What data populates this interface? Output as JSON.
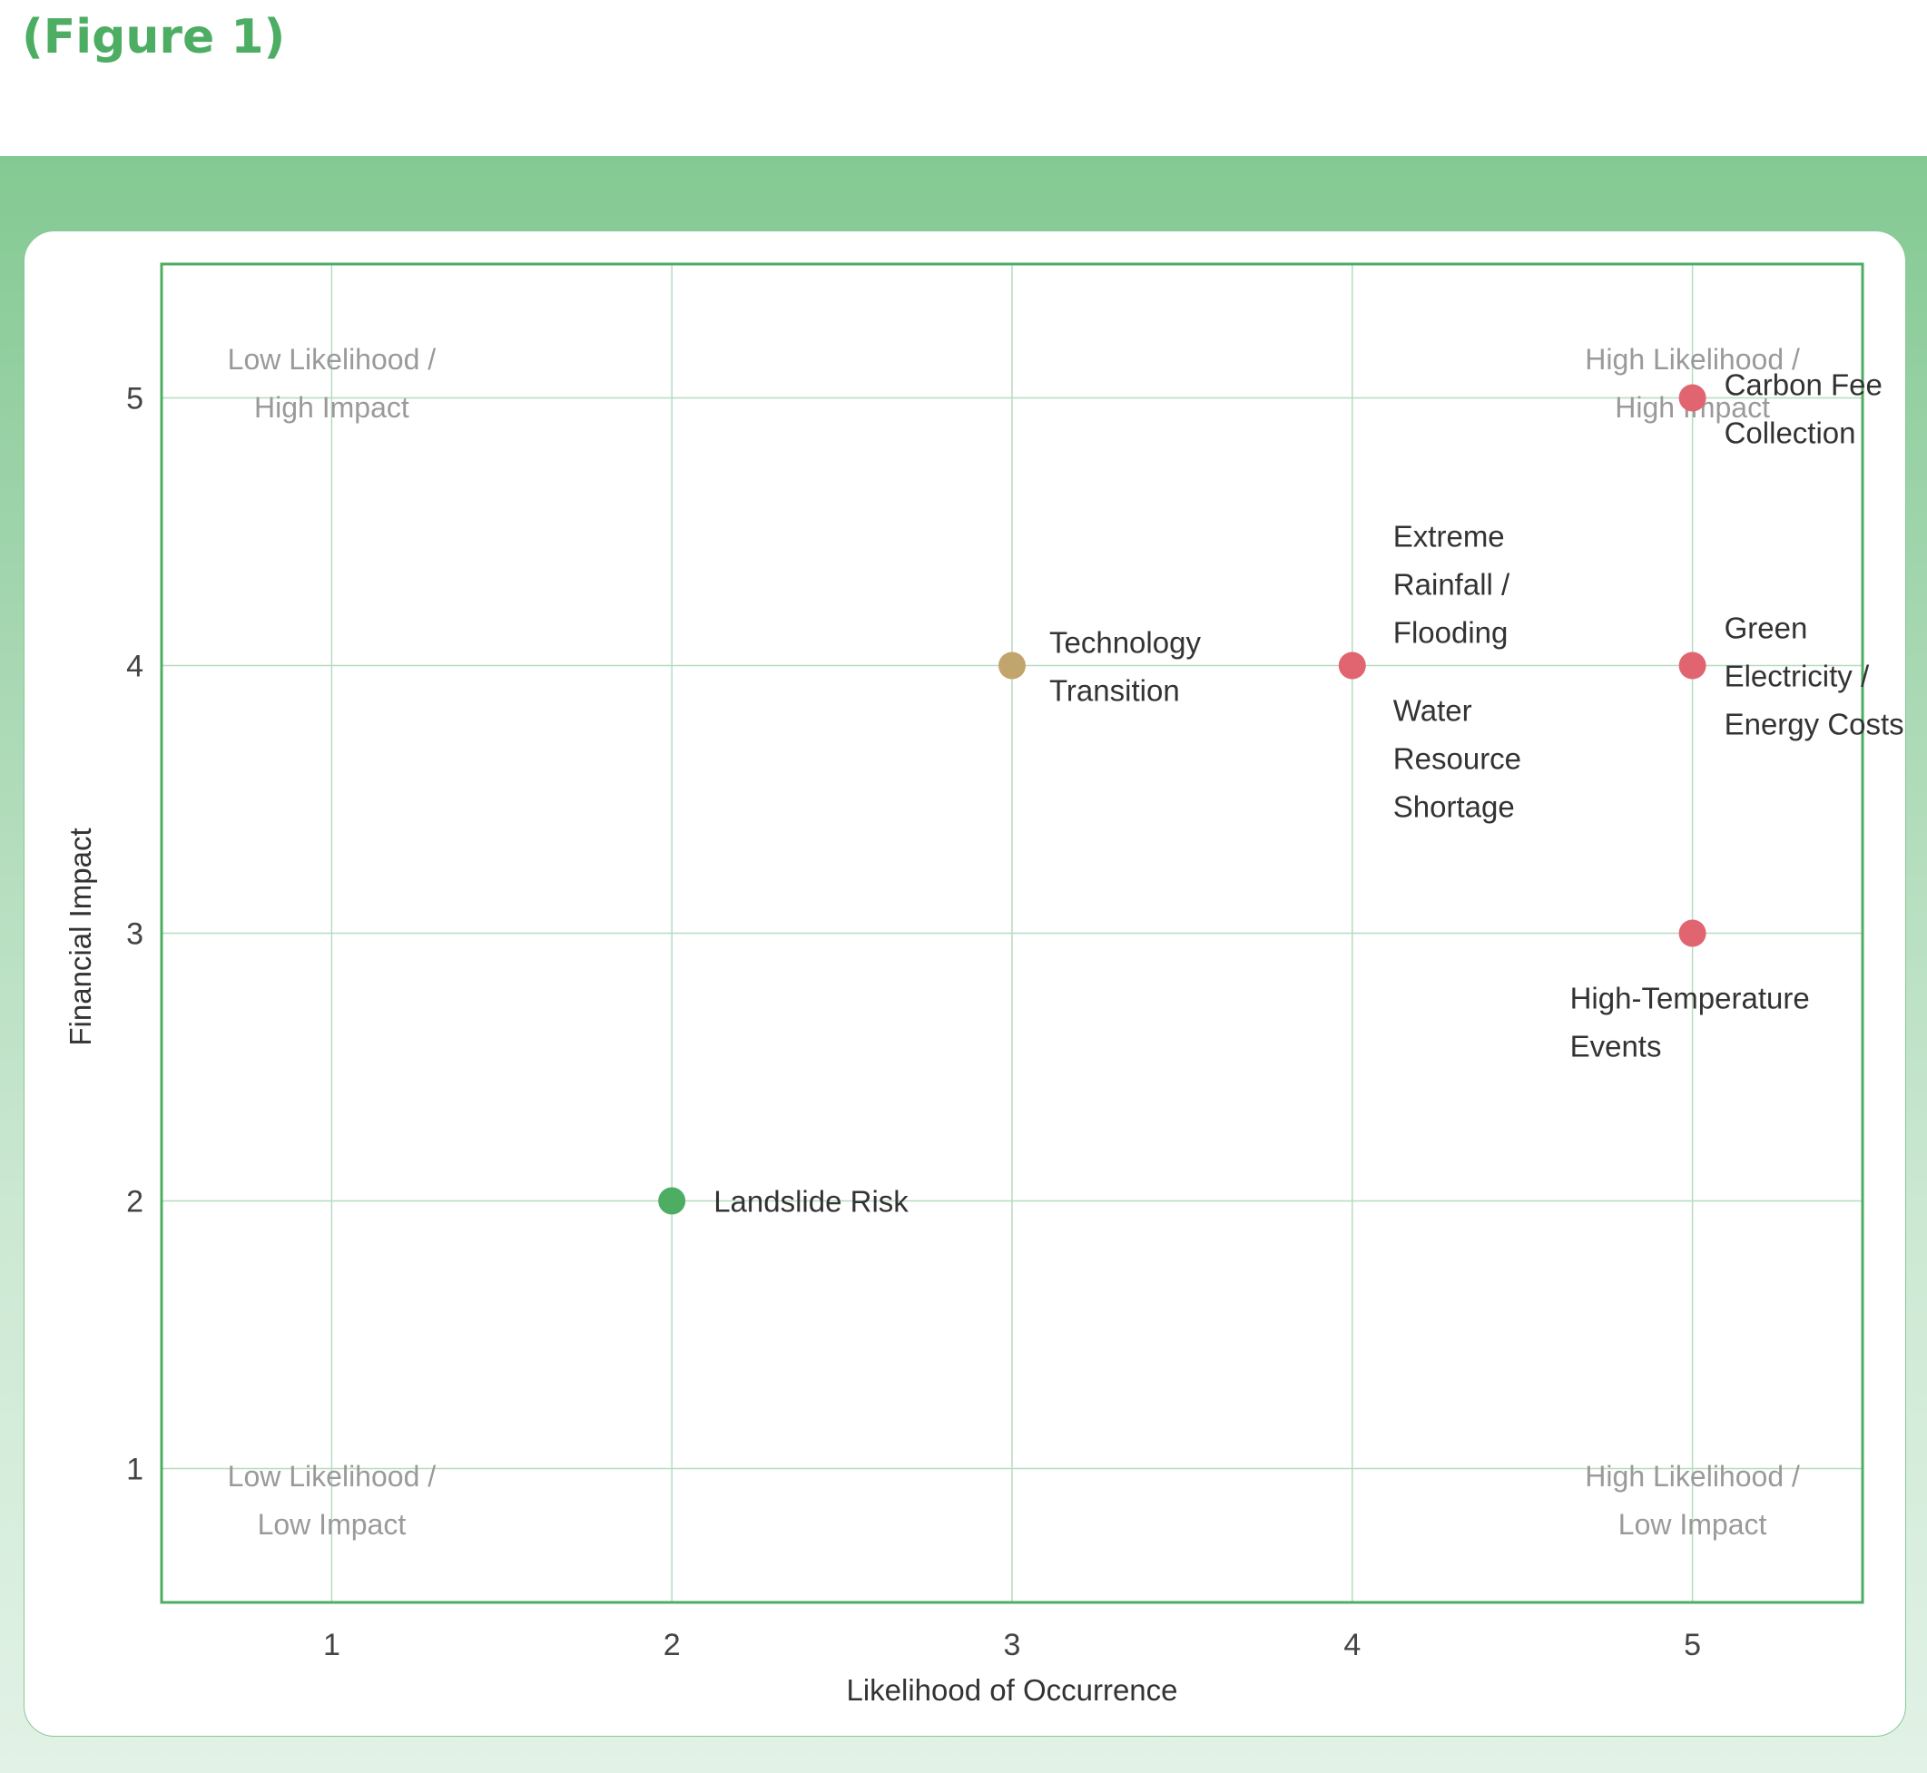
{
  "figure_label": "(Figure 1)",
  "colors": {
    "title": "#4cad63",
    "frame": "#4cad63",
    "grid": "#b5dcbf",
    "red": "#e06571",
    "gold": "#c2a46d",
    "green": "#4cad63"
  },
  "chart_data": {
    "type": "scatter",
    "xlabel": "Likelihood of Occurrence",
    "ylabel": "Financial Impact",
    "xlim": [
      0.5,
      5.5
    ],
    "ylim": [
      0.5,
      5.5
    ],
    "xticks": [
      "1",
      "2",
      "3",
      "4",
      "5"
    ],
    "yticks": [
      "1",
      "2",
      "3",
      "4",
      "5"
    ],
    "grid": true,
    "quadrant_labels": [
      {
        "position": "top-left",
        "lines": [
          "Low Likelihood /",
          "High Impact"
        ]
      },
      {
        "position": "top-right",
        "lines": [
          "High Likelihood /",
          "High Impact"
        ]
      },
      {
        "position": "bottom-left",
        "lines": [
          "Low Likelihood /",
          "Low Impact"
        ]
      },
      {
        "position": "bottom-right",
        "lines": [
          "High Likelihood /",
          "Low Impact"
        ]
      }
    ],
    "points": [
      {
        "x": 5,
        "y": 5,
        "color": "red"
      },
      {
        "x": 4,
        "y": 4,
        "color": "red"
      },
      {
        "x": 5,
        "y": 4,
        "color": "red"
      },
      {
        "x": 3,
        "y": 4,
        "color": "gold"
      },
      {
        "x": 5,
        "y": 3,
        "color": "red"
      },
      {
        "x": 2,
        "y": 2,
        "color": "green"
      }
    ],
    "annotations": [
      {
        "x": 5,
        "y": 5,
        "lines": [
          "Carbon Fee",
          "Collection"
        ]
      },
      {
        "x": 4,
        "y": 4,
        "lines": [
          "Extreme",
          "Rainfall /",
          "Flooding"
        ]
      },
      {
        "x": 4,
        "y": 4,
        "lines": [
          "Water",
          "Resource",
          "Shortage"
        ]
      },
      {
        "x": 3,
        "y": 4,
        "lines": [
          "Technology",
          "Transition"
        ]
      },
      {
        "x": 5,
        "y": 4,
        "lines": [
          "Green",
          "Electricity /",
          "Energy Costs"
        ]
      },
      {
        "x": 5,
        "y": 3,
        "lines": [
          "High-Temperature",
          "Events"
        ]
      },
      {
        "x": 2,
        "y": 2,
        "lines": [
          "Landslide Risk"
        ]
      }
    ]
  }
}
